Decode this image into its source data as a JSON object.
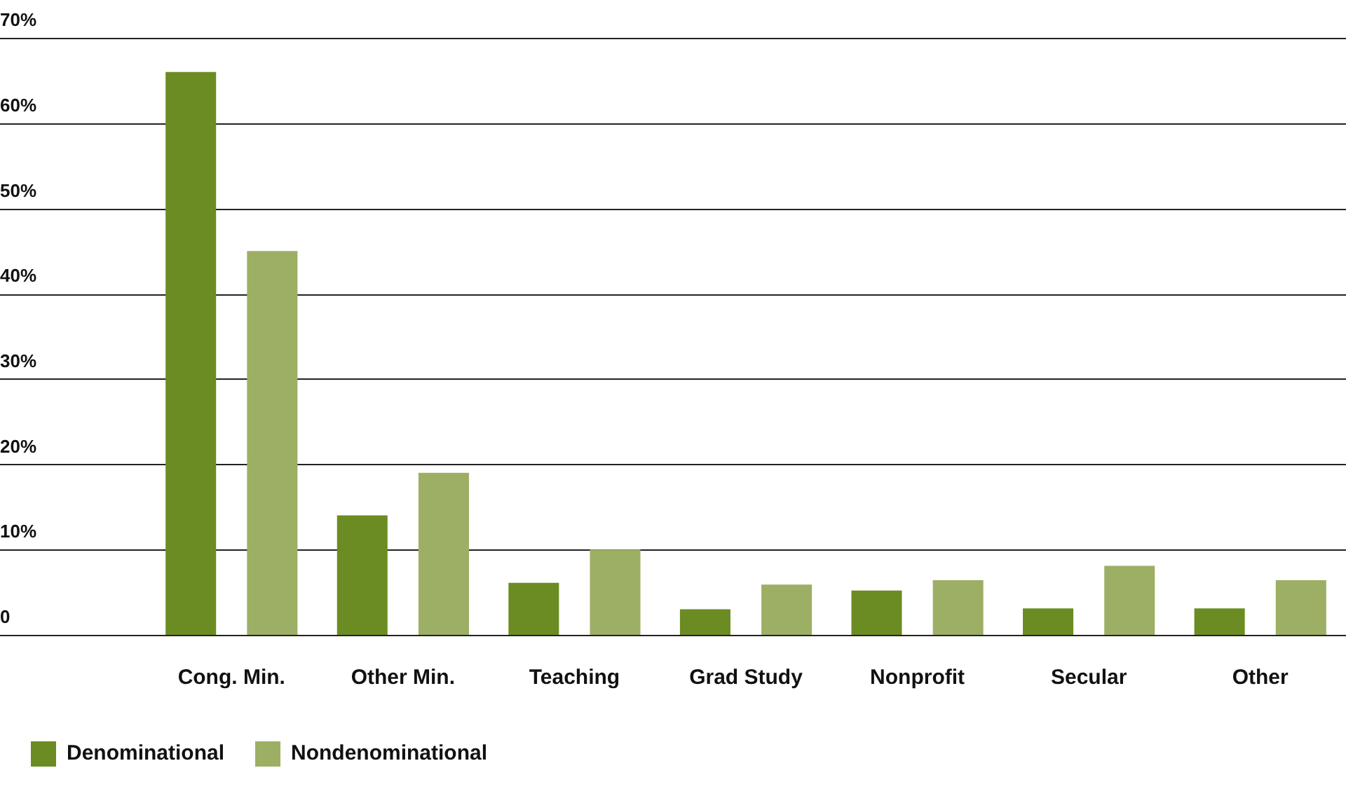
{
  "chart_data": {
    "type": "bar",
    "categories": [
      "Cong. Min.",
      "Other Min.",
      "Teaching",
      "Grad Study",
      "Nonprofit",
      "Secular",
      "Other"
    ],
    "series": [
      {
        "name": "Denominational",
        "color": "#6b8c22",
        "values": [
          66,
          14,
          6.1,
          3,
          5.2,
          3.1,
          3.1
        ]
      },
      {
        "name": "Nondenominational",
        "color": "#9caf64",
        "values": [
          45,
          19,
          10,
          5.9,
          6.4,
          8.1,
          6.4
        ]
      }
    ],
    "ylim": [
      0,
      70
    ],
    "yticks": [
      {
        "value": 0,
        "label": "0"
      },
      {
        "value": 10,
        "label": "10%"
      },
      {
        "value": 20,
        "label": "20%"
      },
      {
        "value": 30,
        "label": "30%"
      },
      {
        "value": 40,
        "label": "40%"
      },
      {
        "value": 50,
        "label": "50%"
      },
      {
        "value": 60,
        "label": "60%"
      },
      {
        "value": 70,
        "label": "70%"
      }
    ],
    "grid": "y",
    "legend": "bottom left"
  }
}
